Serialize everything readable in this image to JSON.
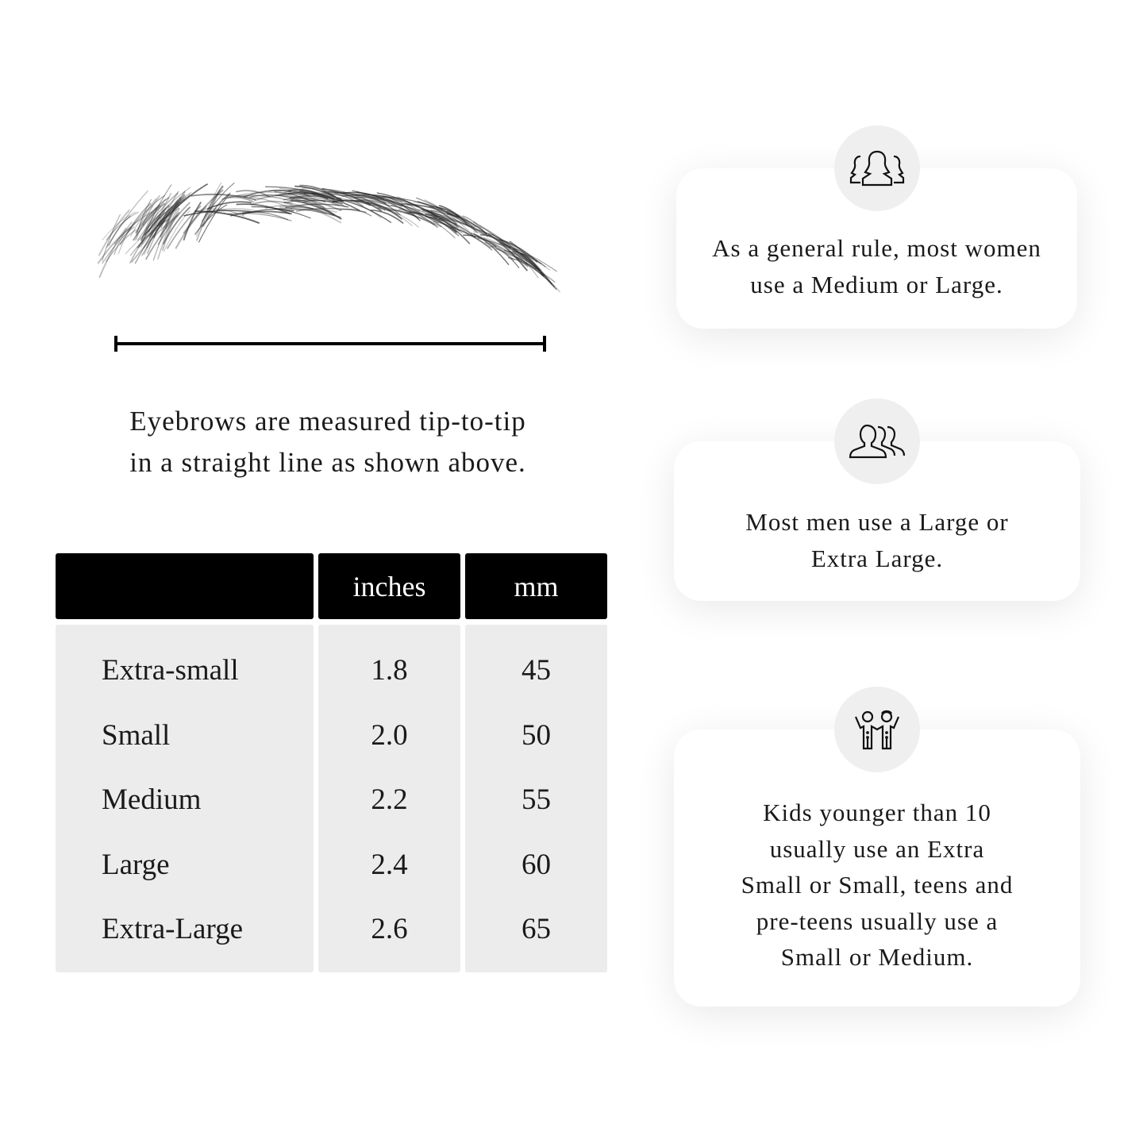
{
  "measurement": {
    "caption_lines": [
      "Eyebrows are measured tip-to-tip",
      "in a straight line as shown above."
    ]
  },
  "size_table": {
    "headers": [
      "",
      "inches",
      "mm"
    ],
    "rows": [
      {
        "size": "Extra-small",
        "inches": "1.8",
        "mm": "45"
      },
      {
        "size": "Small",
        "inches": "2.0",
        "mm": "50"
      },
      {
        "size": "Medium",
        "inches": "2.2",
        "mm": "55"
      },
      {
        "size": "Large",
        "inches": "2.4",
        "mm": "60"
      },
      {
        "size": "Extra-Large",
        "inches": "2.6",
        "mm": "65"
      }
    ]
  },
  "tips": [
    {
      "icon": "women-group-icon",
      "lines": [
        "As a general rule, most women",
        "use a Medium or Large."
      ]
    },
    {
      "icon": "men-group-icon",
      "lines": [
        "Most men use a Large or",
        "Extra Large."
      ]
    },
    {
      "icon": "kids-icon",
      "lines": [
        "Kids younger than 10",
        "usually use an Extra",
        "Small or Small, teens and",
        "pre-teens usually use a",
        "Small or Medium."
      ]
    }
  ],
  "colors": {
    "header_bg": "#000000",
    "body_bg": "#ececec",
    "icon_circle": "#efefef"
  }
}
